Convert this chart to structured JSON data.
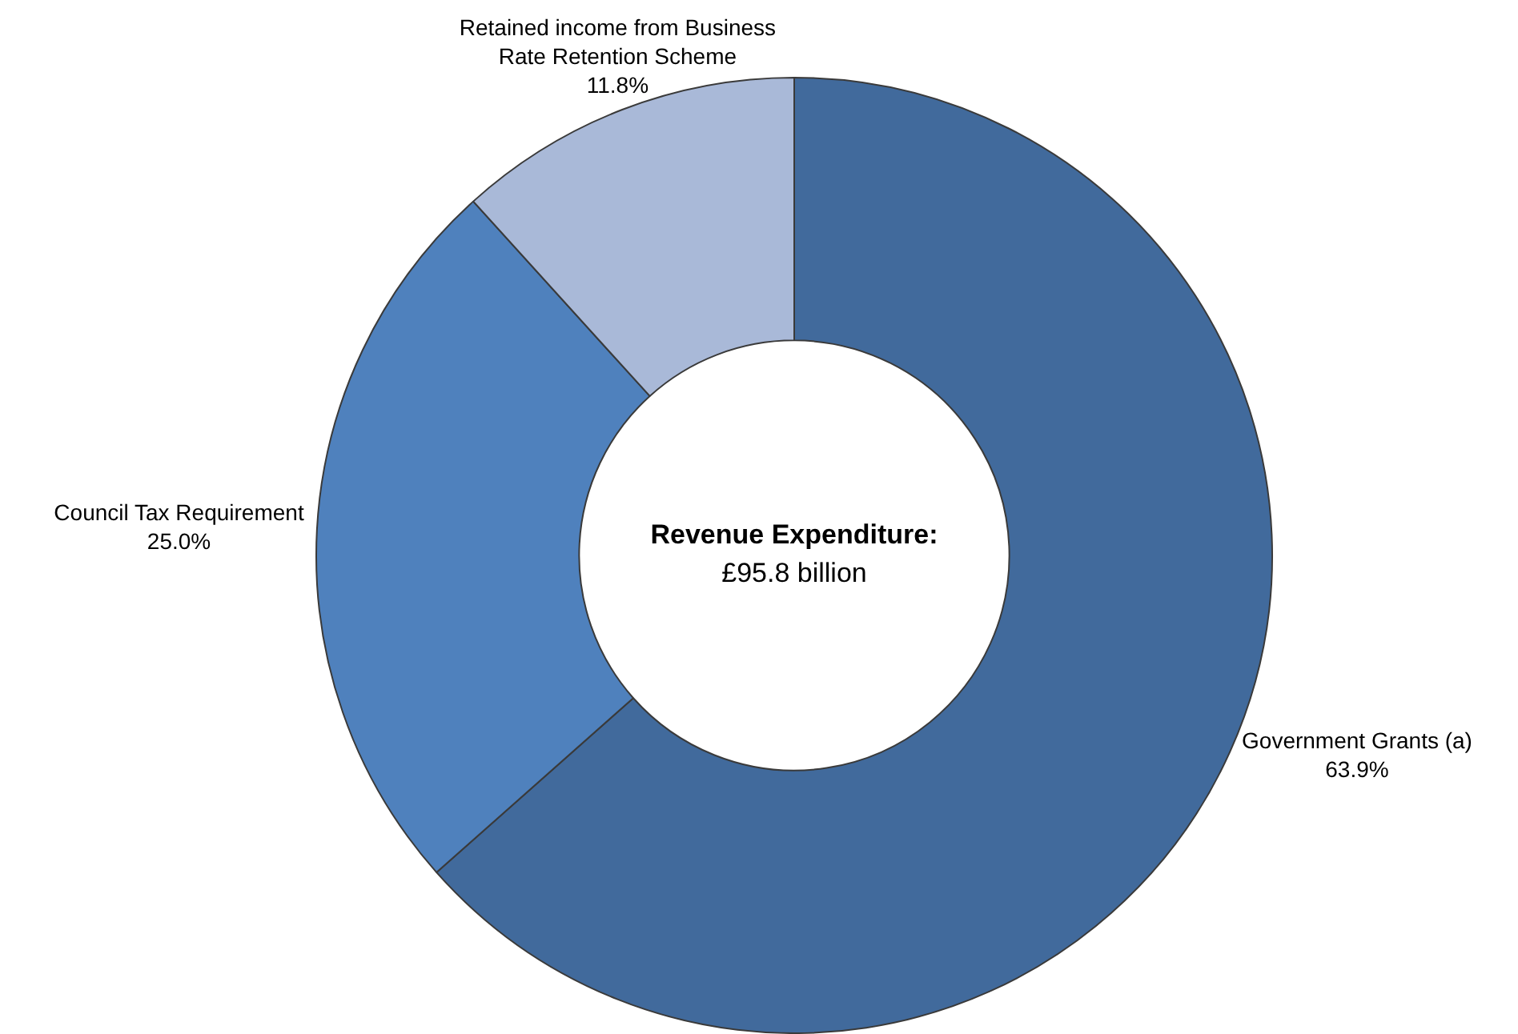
{
  "chart_data": {
    "type": "donut",
    "title": "Revenue Expenditure:",
    "subtitle": "£95.8 billion",
    "categories": [
      "Government Grants (a)",
      "Council Tax Requirement",
      "Retained income from Business Rate Retention Scheme"
    ],
    "values": [
      63.9,
      25.0,
      11.8
    ],
    "colors": [
      "#416a9c",
      "#4f81bd",
      "#a9b9d8"
    ],
    "value_labels": [
      "63.9%",
      "25.0%",
      "11.8%"
    ],
    "legend": false
  }
}
